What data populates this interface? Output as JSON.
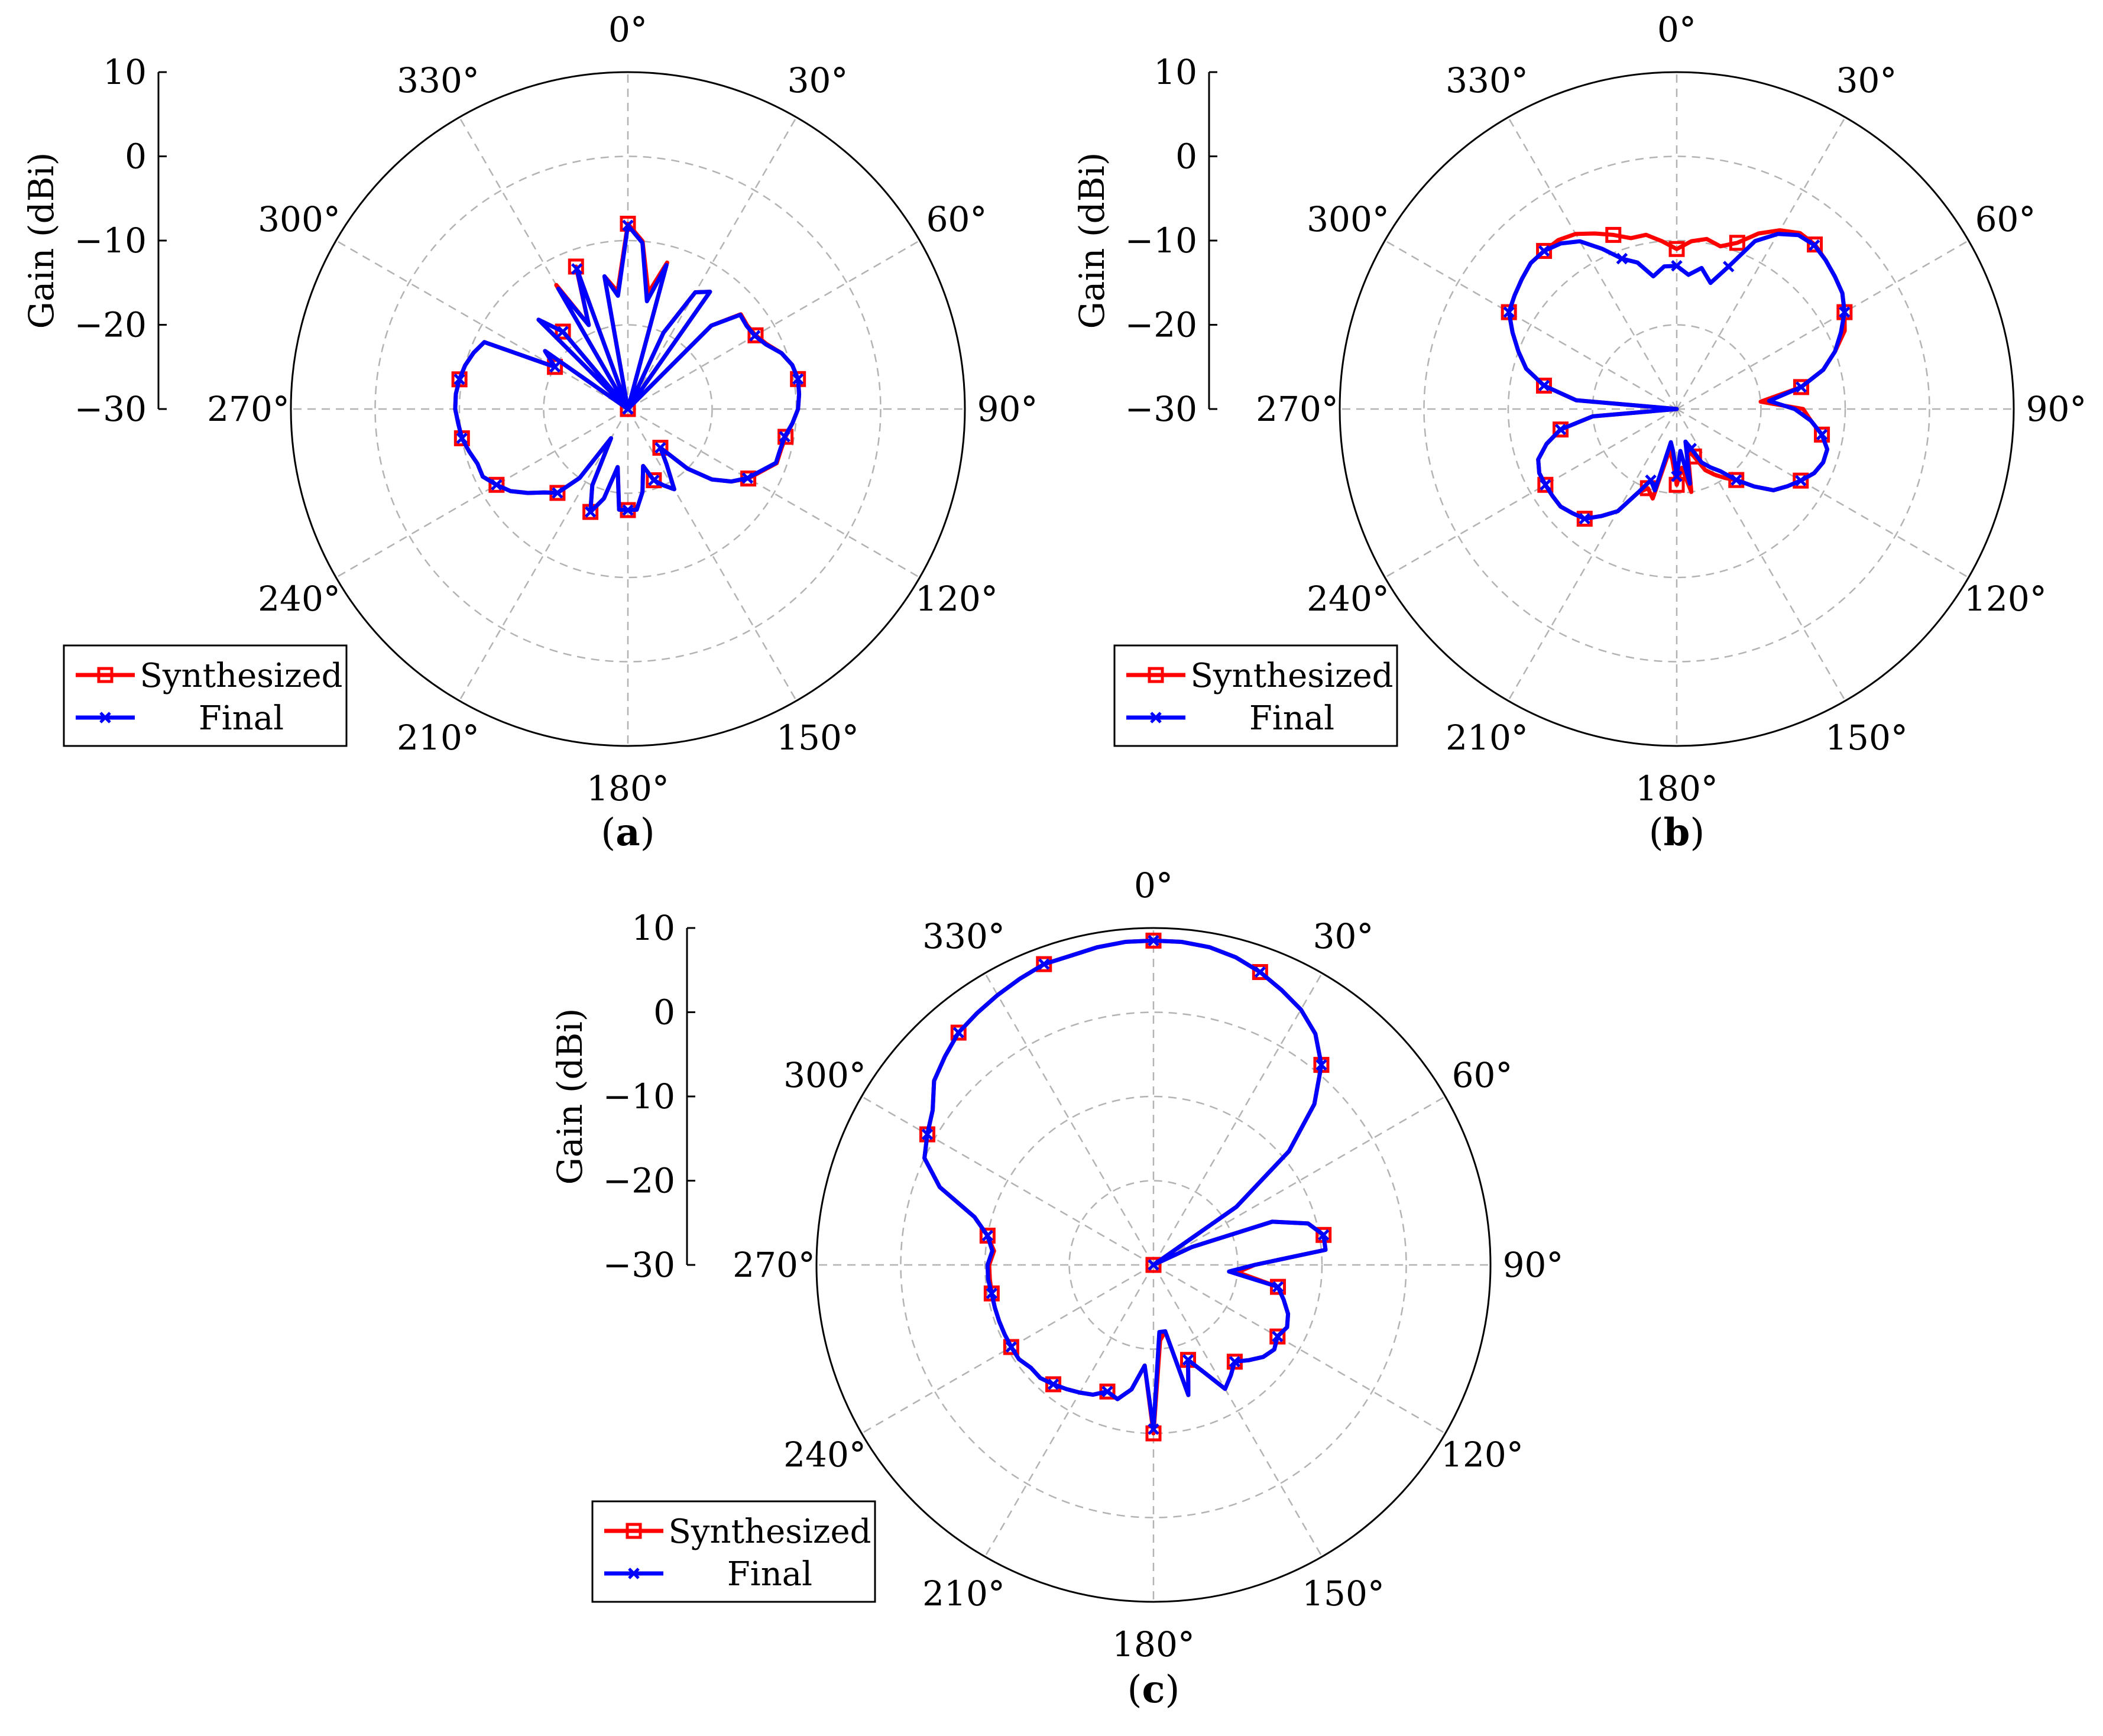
{
  "figure": {
    "panels": [
      {
        "label_open": "(",
        "label_letter": "a",
        "label_close": ")"
      },
      {
        "label_open": "(",
        "label_letter": "b",
        "label_close": ")"
      },
      {
        "label_open": "(",
        "label_letter": "c",
        "label_close": ")"
      }
    ],
    "colors": {
      "synthesized": "#ff0000",
      "final": "#0000ff",
      "grid": "#b3b3b3"
    }
  },
  "chart_data": [
    {
      "type": "polar-line",
      "panel": "a",
      "ylabel": "Gain (dBi)",
      "rlim": [
        -30,
        10
      ],
      "rticks": [
        10,
        0,
        -10,
        -20,
        -30
      ],
      "rtick_labels": [
        "10",
        "0",
        "−10",
        "−20",
        "−30"
      ],
      "angle_ticks": [
        0,
        30,
        60,
        90,
        120,
        150,
        180,
        210,
        240,
        270,
        300,
        330
      ],
      "angle_tick_labels": [
        "0°",
        "30°",
        "60°",
        "90°",
        "120°",
        "150°",
        "180°",
        "210°",
        "240°",
        "270°",
        "300°",
        "330°"
      ],
      "direction": "clockwise",
      "zero_location": "top",
      "grid": true,
      "legend_position": "lower-left",
      "series": [
        {
          "name": "Synthesized",
          "color": "#ff0000",
          "marker": "square",
          "theta": [
            0,
            5,
            10,
            15,
            20,
            25,
            30,
            35,
            40,
            45,
            50,
            55,
            60,
            65,
            70,
            75,
            80,
            85,
            90,
            95,
            100,
            105,
            110,
            115,
            120,
            125,
            130,
            135,
            140,
            145,
            150,
            155,
            160,
            165,
            170,
            175,
            180,
            185,
            190,
            195,
            200,
            205,
            210,
            215,
            220,
            225,
            230,
            235,
            240,
            245,
            250,
            255,
            260,
            265,
            270,
            275,
            280,
            285,
            290,
            295,
            300,
            305,
            310,
            315,
            320,
            325,
            330,
            335,
            340,
            345,
            350,
            355,
            360
          ],
          "r": [
            -8,
            -10,
            -16,
            -12,
            -30,
            -20,
            -14,
            -13,
            -30,
            -16,
            -12.5,
            -12.7,
            -12.5,
            -11.8,
            -10.6,
            -9.8,
            -9.5,
            -9.6,
            -9.8,
            -10.4,
            -11,
            -11.2,
            -11.2,
            -12.5,
            -13.5,
            -15,
            -17,
            -20,
            -24,
            -22,
            -19,
            -20,
            -21,
            -23,
            -20,
            -18,
            -18,
            -18,
            -23,
            -19,
            -17,
            -20,
            -26,
            -20,
            -17,
            -16,
            -14.5,
            -13,
            -12,
            -11,
            -11,
            -10.5,
            -10,
            -9.8,
            -9.5,
            -9.5,
            -9.7,
            -10,
            -10.5,
            -11.2,
            -20,
            -18,
            -30,
            -15,
            -18,
            -30,
            -13,
            -19,
            -12,
            -30,
            -14,
            -16,
            -8
          ]
        },
        {
          "name": "Final",
          "color": "#0000ff",
          "marker": "x",
          "theta": [
            0,
            5,
            10,
            15,
            20,
            25,
            30,
            35,
            40,
            45,
            50,
            55,
            60,
            65,
            70,
            75,
            80,
            85,
            90,
            95,
            100,
            105,
            110,
            115,
            120,
            125,
            130,
            135,
            140,
            145,
            150,
            155,
            160,
            165,
            170,
            175,
            180,
            185,
            190,
            195,
            200,
            205,
            210,
            215,
            220,
            225,
            230,
            235,
            240,
            245,
            250,
            255,
            260,
            265,
            270,
            275,
            280,
            285,
            290,
            295,
            300,
            305,
            310,
            315,
            320,
            325,
            330,
            335,
            340,
            345,
            350,
            355,
            360
          ],
          "r": [
            -8.2,
            -10.2,
            -17,
            -12.3,
            -30,
            -20,
            -14,
            -13,
            -30,
            -16,
            -12.6,
            -12.8,
            -12.6,
            -11.9,
            -10.6,
            -9.8,
            -9.5,
            -9.6,
            -9.8,
            -10.4,
            -11.1,
            -11.3,
            -11.3,
            -12.6,
            -13.6,
            -15,
            -17,
            -20,
            -24,
            -22,
            -19,
            -20,
            -21,
            -23,
            -20,
            -18,
            -18,
            -18,
            -23,
            -19,
            -17,
            -20,
            -26,
            -20,
            -17,
            -16,
            -14.5,
            -13,
            -12,
            -11,
            -11,
            -10.5,
            -10,
            -9.8,
            -9.5,
            -9.5,
            -9.7,
            -10,
            -10.5,
            -11.2,
            -20,
            -18,
            -30,
            -15,
            -18,
            -30,
            -13.5,
            -19,
            -12.3,
            -30,
            -14,
            -16.5,
            -8.2
          ]
        }
      ]
    },
    {
      "type": "polar-line",
      "panel": "b",
      "ylabel": "Gain (dBi)",
      "rlim": [
        -30,
        10
      ],
      "rticks": [
        10,
        0,
        -10,
        -20,
        -30
      ],
      "rtick_labels": [
        "10",
        "0",
        "−10",
        "−20",
        "−30"
      ],
      "angle_ticks": [
        0,
        30,
        60,
        90,
        120,
        150,
        180,
        210,
        240,
        270,
        300,
        330
      ],
      "angle_tick_labels": [
        "0°",
        "30°",
        "60°",
        "90°",
        "120°",
        "150°",
        "180°",
        "210°",
        "240°",
        "270°",
        "300°",
        "330°"
      ],
      "direction": "clockwise",
      "zero_location": "top",
      "grid": true,
      "legend_position": "lower-left",
      "series": [
        {
          "name": "Synthesized",
          "color": "#ff0000",
          "marker": "square",
          "theta": [
            0,
            5,
            10,
            15,
            20,
            25,
            30,
            35,
            40,
            45,
            50,
            55,
            60,
            65,
            70,
            75,
            80,
            85,
            90,
            95,
            100,
            105,
            110,
            115,
            120,
            125,
            130,
            135,
            140,
            145,
            150,
            155,
            160,
            165,
            170,
            175,
            180,
            185,
            190,
            195,
            200,
            205,
            210,
            215,
            220,
            225,
            230,
            235,
            240,
            245,
            250,
            255,
            260,
            265,
            270,
            275,
            280,
            285,
            290,
            295,
            300,
            305,
            310,
            315,
            320,
            325,
            330,
            335,
            340,
            345,
            350,
            355,
            360
          ],
          "r": [
            -11,
            -10,
            -9.5,
            -10,
            -9,
            -7,
            -5.5,
            -4.5,
            -4.5,
            -5,
            -5.5,
            -6,
            -7,
            -8,
            -10,
            -12,
            -15,
            -20,
            -15,
            -14,
            -12.5,
            -11.5,
            -11.5,
            -12,
            -13,
            -14,
            -15,
            -17,
            -19,
            -20,
            -21,
            -22,
            -24,
            -25,
            -20,
            -23,
            -21,
            -24,
            -25,
            -19,
            -20,
            -19,
            -16,
            -14.5,
            -13,
            -12.5,
            -12,
            -12,
            -12,
            -12,
            -12.5,
            -14,
            -16,
            -20,
            -30,
            -18,
            -14,
            -11.5,
            -10,
            -8.5,
            -7,
            -6.5,
            -6,
            -5.5,
            -5.5,
            -5.5,
            -6,
            -7,
            -8,
            -9,
            -9,
            -10,
            -11
          ]
        },
        {
          "name": "Final",
          "color": "#0000ff",
          "marker": "x",
          "theta": [
            0,
            5,
            10,
            15,
            20,
            25,
            30,
            35,
            40,
            45,
            50,
            55,
            60,
            65,
            70,
            75,
            80,
            85,
            90,
            95,
            100,
            105,
            110,
            115,
            120,
            125,
            130,
            135,
            140,
            145,
            150,
            155,
            160,
            165,
            170,
            175,
            180,
            185,
            190,
            195,
            200,
            205,
            210,
            215,
            220,
            225,
            230,
            235,
            240,
            245,
            250,
            255,
            260,
            265,
            270,
            275,
            280,
            285,
            290,
            295,
            300,
            305,
            310,
            315,
            320,
            325,
            330,
            335,
            340,
            345,
            350,
            355,
            360
          ],
          "r": [
            -13,
            -14,
            -13,
            -14.5,
            -12,
            -8,
            -6,
            -4.8,
            -4.6,
            -5,
            -5.5,
            -6,
            -7,
            -8.5,
            -10,
            -12,
            -15,
            -19,
            -16,
            -14,
            -12.5,
            -11.5,
            -11.5,
            -12,
            -13,
            -14,
            -15,
            -17,
            -19,
            -21,
            -22,
            -23,
            -25,
            -26,
            -21,
            -25,
            -22,
            -25,
            -26,
            -20,
            -21,
            -19,
            -16,
            -14.5,
            -13,
            -12.5,
            -12,
            -12,
            -12,
            -12,
            -12.5,
            -14,
            -16,
            -20,
            -30,
            -18,
            -14,
            -11.5,
            -10,
            -8.5,
            -7,
            -6.5,
            -6,
            -5.5,
            -5.5,
            -6,
            -7,
            -9,
            -11,
            -12,
            -14,
            -13,
            -13
          ]
        }
      ]
    },
    {
      "type": "polar-line",
      "panel": "c",
      "ylabel": "Gain (dBi)",
      "rlim": [
        -30,
        10
      ],
      "rticks": [
        10,
        0,
        -10,
        -20,
        -30
      ],
      "rtick_labels": [
        "10",
        "0",
        "−10",
        "−20",
        "−30"
      ],
      "angle_ticks": [
        0,
        30,
        60,
        90,
        120,
        150,
        180,
        210,
        240,
        270,
        300,
        330
      ],
      "angle_tick_labels": [
        "0°",
        "30°",
        "60°",
        "90°",
        "120°",
        "150°",
        "180°",
        "210°",
        "240°",
        "270°",
        "300°",
        "330°"
      ],
      "direction": "clockwise",
      "zero_location": "top",
      "grid": true,
      "legend_position": "lower-left",
      "series": [
        {
          "name": "Synthesized",
          "color": "#ff0000",
          "marker": "square",
          "theta": [
            0,
            5,
            10,
            15,
            20,
            25,
            30,
            35,
            40,
            45,
            50,
            55,
            60,
            65,
            70,
            75,
            80,
            85,
            90,
            95,
            100,
            105,
            110,
            115,
            120,
            125,
            130,
            135,
            140,
            145,
            150,
            155,
            160,
            165,
            170,
            175,
            180,
            185,
            190,
            195,
            200,
            205,
            210,
            215,
            220,
            225,
            230,
            235,
            240,
            245,
            250,
            255,
            260,
            265,
            270,
            275,
            280,
            285,
            290,
            295,
            300,
            305,
            310,
            315,
            320,
            325,
            330,
            335,
            340,
            345,
            350,
            355,
            360
          ],
          "r": [
            8.5,
            8.5,
            8.3,
            7.8,
            7,
            6,
            5,
            3.5,
            1,
            -3,
            -9,
            -18,
            -30,
            -25,
            -15,
            -11,
            -9.5,
            -9.5,
            -18,
            -20,
            -15,
            -14,
            -13,
            -12.5,
            -13,
            -12.5,
            -13,
            -14,
            -15,
            -14,
            -13,
            -16,
            -18,
            -14,
            -22,
            -21,
            -10,
            -18,
            -15,
            -13.5,
            -14,
            -13,
            -12.5,
            -12,
            -11.5,
            -11,
            -11,
            -10.5,
            -10.5,
            -10.5,
            -10.5,
            -10.5,
            -10.5,
            -10.5,
            -10.5,
            -11,
            -10,
            -8,
            -3,
            0,
            1,
            2,
            4,
            5,
            6,
            6.5,
            7,
            7.5,
            8,
            8,
            8.3,
            8.5,
            8.5
          ]
        },
        {
          "name": "Final",
          "color": "#0000ff",
          "marker": "x",
          "theta": [
            0,
            5,
            10,
            15,
            20,
            25,
            30,
            35,
            40,
            45,
            50,
            55,
            60,
            65,
            70,
            75,
            80,
            85,
            90,
            95,
            100,
            105,
            110,
            115,
            120,
            125,
            130,
            135,
            140,
            145,
            150,
            155,
            160,
            165,
            170,
            175,
            180,
            185,
            190,
            195,
            200,
            205,
            210,
            215,
            220,
            225,
            230,
            235,
            240,
            245,
            250,
            255,
            260,
            265,
            270,
            275,
            280,
            285,
            290,
            295,
            300,
            305,
            310,
            315,
            320,
            325,
            330,
            335,
            340,
            345,
            350,
            355,
            360
          ],
          "r": [
            8.5,
            8.5,
            8.3,
            7.8,
            7,
            6,
            5,
            3.5,
            1,
            -3,
            -9,
            -18,
            -30,
            -25,
            -15,
            -11,
            -9.5,
            -9.5,
            -18,
            -21,
            -15,
            -14,
            -13,
            -12.5,
            -13,
            -12.5,
            -13,
            -14,
            -15,
            -14,
            -13,
            -16,
            -18,
            -14,
            -22,
            -22,
            -10.5,
            -18,
            -15,
            -13.5,
            -14,
            -13,
            -12.5,
            -12,
            -11.5,
            -11,
            -11,
            -10.5,
            -10.5,
            -10.5,
            -10.5,
            -10.5,
            -10.5,
            -10.3,
            -10.3,
            -10.8,
            -10,
            -8,
            -3,
            0,
            1,
            2,
            4,
            5,
            6,
            6.5,
            7,
            7.5,
            8,
            8,
            8.3,
            8.5,
            8.5
          ]
        }
      ]
    }
  ]
}
